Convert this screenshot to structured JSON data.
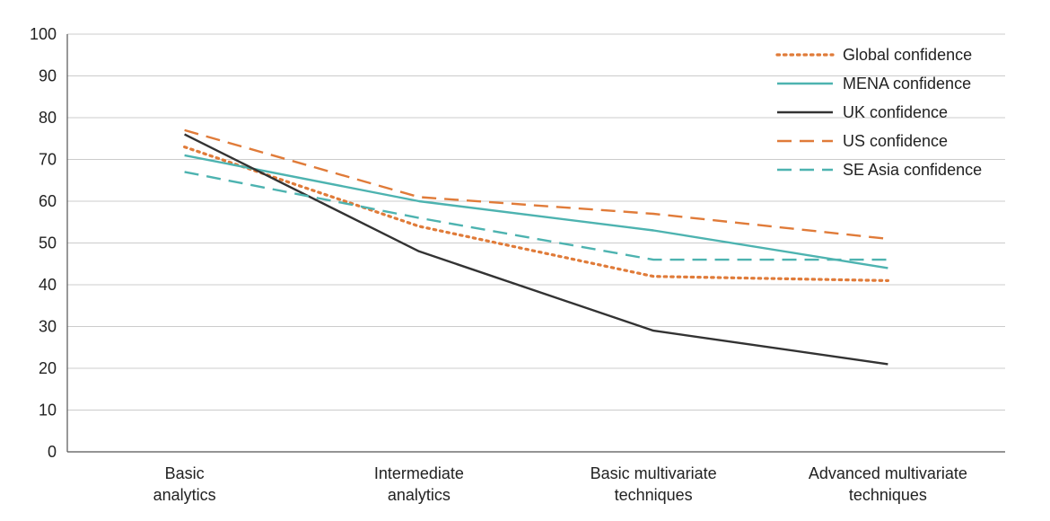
{
  "chart_data": {
    "type": "line",
    "title": "",
    "xlabel": "",
    "ylabel": "",
    "ylim": [
      0,
      100
    ],
    "yticks": [
      0,
      10,
      20,
      30,
      40,
      50,
      60,
      70,
      80,
      90,
      100
    ],
    "grid": "horizontal",
    "legend_position": "top-right",
    "categories": [
      [
        "Basic",
        "analytics"
      ],
      [
        "Intermediate",
        "analytics"
      ],
      [
        "Basic multivariate",
        "techniques"
      ],
      [
        "Advanced multivariate",
        "techniques"
      ]
    ],
    "series": [
      {
        "name": "Global confidence",
        "values": [
          73,
          54,
          42,
          41
        ],
        "color": "#e07b39",
        "style": "dotted"
      },
      {
        "name": "MENA confidence",
        "values": [
          71,
          60,
          53,
          44
        ],
        "color": "#4db3b0",
        "style": "solid"
      },
      {
        "name": "UK confidence",
        "values": [
          76,
          48,
          29,
          21
        ],
        "color": "#333333",
        "style": "solid"
      },
      {
        "name": "US confidence",
        "values": [
          77,
          61,
          57,
          51
        ],
        "color": "#e07b39",
        "style": "dashed"
      },
      {
        "name": "SE Asia confidence",
        "values": [
          67,
          56,
          46,
          46
        ],
        "color": "#4db3b0",
        "style": "dashed"
      }
    ]
  }
}
